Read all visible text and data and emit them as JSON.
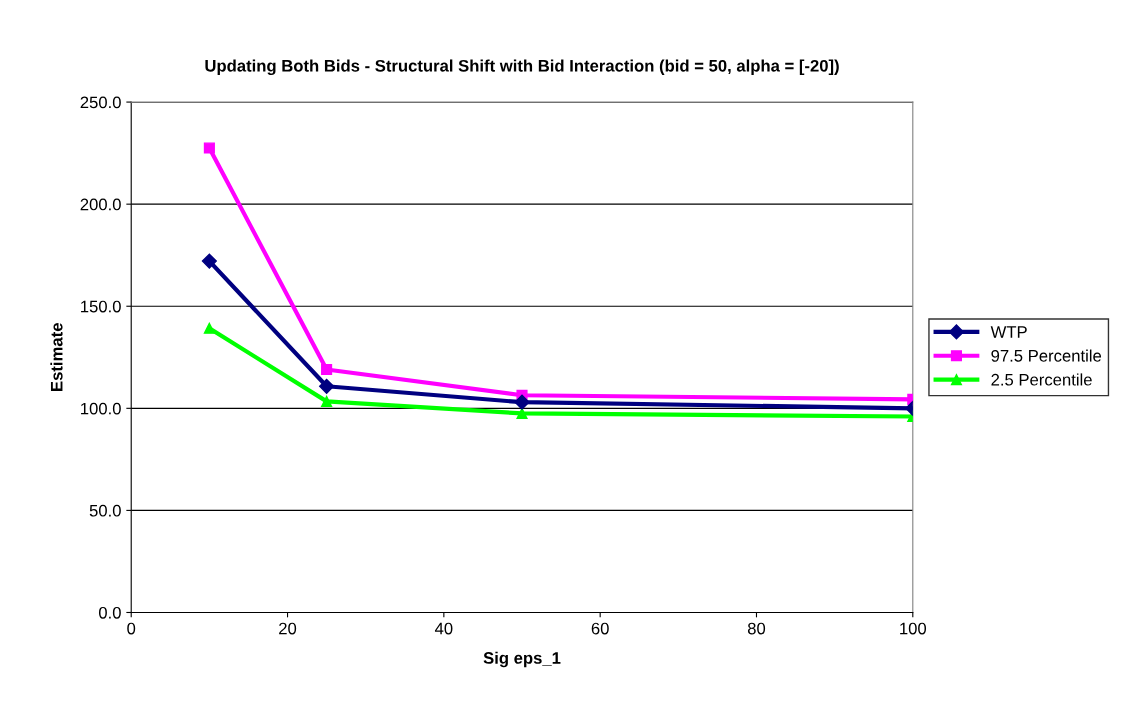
{
  "chart_data": {
    "type": "line",
    "title": "Updating Both Bids - Structural Shift with Bid Interaction (bid = 50, alpha = [-20])",
    "xlabel": "Sig eps_1",
    "ylabel": "Estimate",
    "x": [
      10,
      25,
      50,
      100
    ],
    "series": [
      {
        "name": "WTP",
        "color": "#000080",
        "values": [
          172.1,
          110.8,
          103.0,
          100.0
        ],
        "marker": "diamond"
      },
      {
        "name": "97.5 Percentile",
        "color": "#ff00ff",
        "values": [
          227.5,
          119.0,
          106.4,
          104.4
        ],
        "marker": "square"
      },
      {
        "name": "2.5 Percentile",
        "color": "#00ff00",
        "values": [
          139.2,
          103.4,
          97.5,
          96.0
        ],
        "marker": "triangle"
      }
    ],
    "xlim": [
      0,
      100
    ],
    "xticks": [
      0,
      20,
      40,
      60,
      80,
      100
    ],
    "ylim": [
      0,
      250
    ],
    "yticks": [
      {
        "value": 0,
        "label": "0.0"
      },
      {
        "value": 50,
        "label": "50.0"
      },
      {
        "value": 100,
        "label": "100.0"
      },
      {
        "value": 150,
        "label": "150.0"
      },
      {
        "value": 200,
        "label": "200.0"
      },
      {
        "value": 250,
        "label": "250.0"
      }
    ],
    "grid": "y",
    "legend": "right",
    "line_style": "solid"
  }
}
